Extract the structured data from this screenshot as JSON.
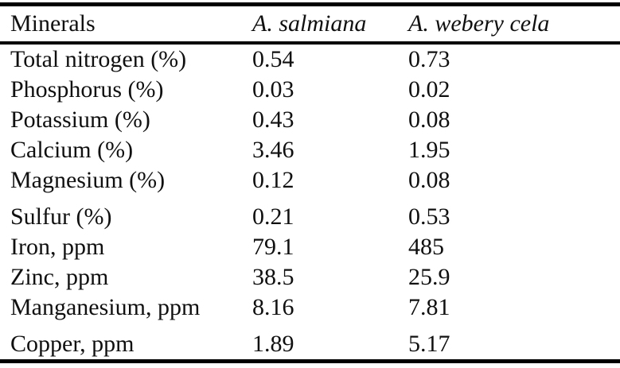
{
  "colors": {
    "background": "#ffffff",
    "text": "#101010",
    "rule": "#000000"
  },
  "table": {
    "columns": [
      "Minerals",
      "A. salmiana",
      "A. webery cela"
    ],
    "rows": [
      {
        "mineral": "Total nitrogen (%)",
        "salmiana": "0.54",
        "webery": "0.73"
      },
      {
        "mineral": "Phosphorus (%)",
        "salmiana": "0.03",
        "webery": "0.02"
      },
      {
        "mineral": "Potassium (%)",
        "salmiana": "0.43",
        "webery": "0.08"
      },
      {
        "mineral": "Calcium (%)",
        "salmiana": "3.46",
        "webery": "1.95"
      },
      {
        "mineral": "Magnesium (%)",
        "salmiana": "0.12",
        "webery": "0.08"
      },
      {
        "mineral": "Sulfur (%)",
        "salmiana": "0.21",
        "webery": "0.53"
      },
      {
        "mineral": "Iron, ppm",
        "salmiana": "79.1",
        "webery": "485"
      },
      {
        "mineral": "Zinc, ppm",
        "salmiana": "38.5",
        "webery": "25.9"
      },
      {
        "mineral": "Manganesium, ppm",
        "salmiana": "8.16",
        "webery": "7.81"
      },
      {
        "mineral": "Copper, ppm",
        "salmiana": "1.89",
        "webery": "5.17"
      }
    ]
  }
}
